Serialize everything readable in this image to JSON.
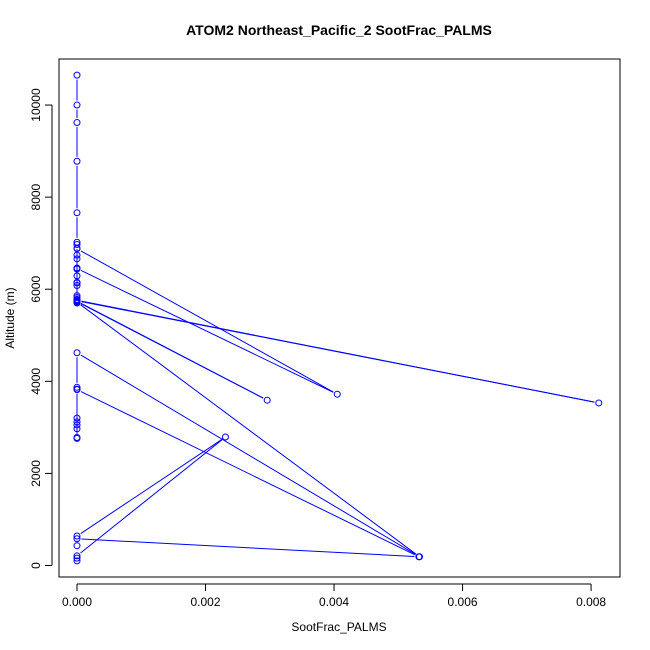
{
  "chart_data": {
    "type": "scatter",
    "title": "ATOM2 Northeast_Pacific_2 SootFrac_PALMS",
    "xlabel": "SootFrac_PALMS",
    "ylabel": "Altitude (m)",
    "xlim": [
      -0.00028,
      0.00845
    ],
    "ylim": [
      -250,
      11000
    ],
    "x_ticks": [
      0.0,
      0.002,
      0.004,
      0.006,
      0.008
    ],
    "x_tick_labels": [
      "0.000",
      "0.002",
      "0.004",
      "0.006",
      "0.008"
    ],
    "y_ticks": [
      0,
      2000,
      4000,
      6000,
      8000,
      10000
    ],
    "y_tick_labels": [
      "0",
      "2000",
      "4000",
      "6000",
      "8000",
      "10000"
    ],
    "point_style": "open-circle",
    "line_style": "connected",
    "color": "#0000ff",
    "series": [
      {
        "x": [
          0.0,
          0.0,
          0.0,
          0.0,
          0.0,
          0.0,
          0.0,
          0.0,
          0.0,
          0.0,
          0.0,
          0.0,
          0.0,
          0.0,
          0.0,
          0.0,
          0.0,
          0.0,
          0.0,
          0.00405,
          0.0,
          0.0,
          0.0,
          0.0,
          0.0,
          0.0,
          0.0,
          0.00812,
          0.0,
          0.0,
          0.00296,
          0.0,
          0.0,
          0.00533,
          0.0,
          0.0,
          0.0,
          0.0,
          0.0,
          0.0,
          0.0,
          0.0,
          0.0,
          0.0,
          0.00532,
          0.0,
          0.0,
          0.0,
          0.00231,
          0.0,
          0.0,
          0.0
        ],
        "y": [
          10650,
          10000,
          9620,
          8780,
          7660,
          7020,
          6970,
          6740,
          6660,
          6460,
          6290,
          6140,
          6080,
          5860,
          5820,
          5770,
          5700,
          6890,
          6880,
          3720,
          6450,
          6440,
          6150,
          6140,
          5780,
          5760,
          5750,
          3530,
          5760,
          5740,
          3590,
          5730,
          5720,
          190,
          4620,
          3870,
          3830,
          3200,
          3120,
          3050,
          2970,
          2780,
          2760,
          3820,
          190,
          580,
          430,
          640,
          2790,
          210,
          160,
          100
        ]
      }
    ]
  }
}
